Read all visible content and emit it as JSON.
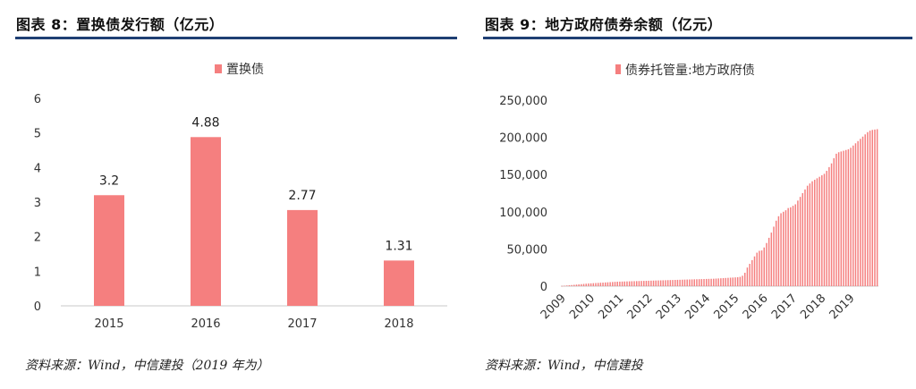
{
  "left": {
    "title": "图表 8：置换债发行额（亿元）",
    "source": "资料来源：Wind，中信建投（2019 年为）"
  },
  "right": {
    "title": "图表 9：地方政府债券余额（亿元）",
    "source": "资料来源：Wind，中信建投"
  },
  "colors": {
    "bar": "#f57f7f",
    "rule": "#1f3f73",
    "axis": "#c8c8c8"
  },
  "chart_data": [
    {
      "type": "bar",
      "title": "",
      "legend": "置换债",
      "legend_position": "top-center",
      "categories": [
        "2015",
        "2016",
        "2017",
        "2018"
      ],
      "series": [
        {
          "name": "置换债",
          "values": [
            3.2,
            4.88,
            2.77,
            1.31
          ]
        }
      ],
      "data_labels": [
        "3.2",
        "4.88",
        "2.77",
        "1.31"
      ],
      "ylim": [
        0,
        6
      ],
      "yticks": [
        "0",
        "1",
        "2",
        "3",
        "4",
        "5",
        "6"
      ],
      "grid": false
    },
    {
      "type": "bar",
      "title": "",
      "legend": "债券托管量:地方政府债",
      "legend_position": "top-center",
      "x_tick_labels": [
        "2009",
        "2010",
        "2011",
        "2012",
        "2013",
        "2014",
        "2015",
        "2016",
        "2017",
        "2018",
        "2019"
      ],
      "ylim": [
        0,
        250000
      ],
      "yticks": [
        "0",
        "50,000",
        "100,000",
        "150,000",
        "200,000",
        "250,000"
      ],
      "grid": false,
      "series": [
        {
          "name": "债券托管量:地方政府债",
          "x": [
            "2009-01",
            "2009-02",
            "2009-03",
            "2009-04",
            "2009-05",
            "2009-06",
            "2009-07",
            "2009-08",
            "2009-09",
            "2009-10",
            "2009-11",
            "2009-12",
            "2010-01",
            "2010-02",
            "2010-03",
            "2010-04",
            "2010-05",
            "2010-06",
            "2010-07",
            "2010-08",
            "2010-09",
            "2010-10",
            "2010-11",
            "2010-12",
            "2011-01",
            "2011-02",
            "2011-03",
            "2011-04",
            "2011-05",
            "2011-06",
            "2011-07",
            "2011-08",
            "2011-09",
            "2011-10",
            "2011-11",
            "2011-12",
            "2012-01",
            "2012-02",
            "2012-03",
            "2012-04",
            "2012-05",
            "2012-06",
            "2012-07",
            "2012-08",
            "2012-09",
            "2012-10",
            "2012-11",
            "2012-12",
            "2013-01",
            "2013-02",
            "2013-03",
            "2013-04",
            "2013-05",
            "2013-06",
            "2013-07",
            "2013-08",
            "2013-09",
            "2013-10",
            "2013-11",
            "2013-12",
            "2014-01",
            "2014-02",
            "2014-03",
            "2014-04",
            "2014-05",
            "2014-06",
            "2014-07",
            "2014-08",
            "2014-09",
            "2014-10",
            "2014-11",
            "2014-12",
            "2015-01",
            "2015-02",
            "2015-03",
            "2015-04",
            "2015-05",
            "2015-06",
            "2015-07",
            "2015-08",
            "2015-09",
            "2015-10",
            "2015-11",
            "2015-12",
            "2016-01",
            "2016-02",
            "2016-03",
            "2016-04",
            "2016-05",
            "2016-06",
            "2016-07",
            "2016-08",
            "2016-09",
            "2016-10",
            "2016-11",
            "2016-12",
            "2017-01",
            "2017-02",
            "2017-03",
            "2017-04",
            "2017-05",
            "2017-06",
            "2017-07",
            "2017-08",
            "2017-09",
            "2017-10",
            "2017-11",
            "2017-12",
            "2018-01",
            "2018-02",
            "2018-03",
            "2018-04",
            "2018-05",
            "2018-06",
            "2018-07",
            "2018-08",
            "2018-09",
            "2018-10",
            "2018-11",
            "2018-12",
            "2019-01",
            "2019-02",
            "2019-03",
            "2019-04",
            "2019-05",
            "2019-06",
            "2019-07",
            "2019-08",
            "2019-09",
            "2019-10",
            "2019-11",
            "2019-12"
          ],
          "values": [
            300,
            600,
            900,
            1200,
            1500,
            1800,
            2100,
            2400,
            2700,
            3000,
            3300,
            3600,
            3800,
            4000,
            4200,
            4400,
            4600,
            4800,
            5000,
            5200,
            5400,
            5600,
            5800,
            6000,
            6100,
            6200,
            6300,
            6400,
            6500,
            6600,
            6700,
            6800,
            6900,
            7000,
            7100,
            7200,
            7300,
            7400,
            7500,
            7600,
            7700,
            7800,
            7900,
            8000,
            8100,
            8200,
            8300,
            8400,
            8500,
            8600,
            8700,
            8800,
            8900,
            9000,
            9100,
            9200,
            9300,
            9400,
            9500,
            9600,
            9700,
            9800,
            9900,
            10000,
            10200,
            10400,
            10600,
            10800,
            11000,
            11200,
            11400,
            11600,
            11800,
            12000,
            12500,
            14000,
            18000,
            25000,
            30000,
            35000,
            40000,
            45000,
            47500,
            48000,
            52000,
            58000,
            65000,
            72000,
            80000,
            88000,
            94000,
            98000,
            100000,
            102000,
            105000,
            106000,
            108000,
            110000,
            115000,
            120000,
            125000,
            130000,
            135000,
            138000,
            141000,
            143000,
            145000,
            147000,
            149000,
            151000,
            155000,
            160000,
            165000,
            172000,
            178000,
            180000,
            181000,
            182000,
            183000,
            184000,
            186000,
            189000,
            192000,
            195000,
            198000,
            201000,
            204000,
            207000,
            209000,
            210000,
            210500,
            211000
          ]
        }
      ]
    }
  ]
}
